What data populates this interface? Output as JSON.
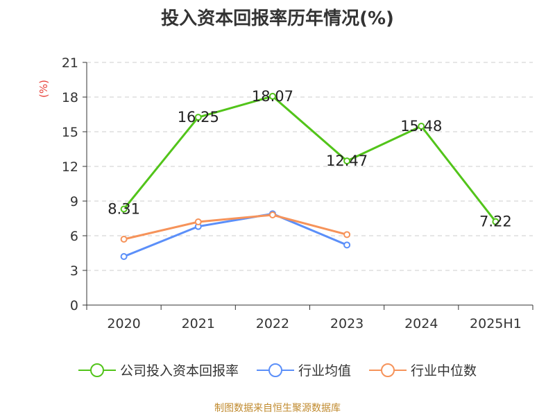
{
  "chart_data": {
    "type": "line",
    "title": "投入资本回报率历年情况(%)",
    "ylabel": "(%)",
    "categories": [
      "2020",
      "2021",
      "2022",
      "2023",
      "2024",
      "2025H1"
    ],
    "ylim": [
      0,
      21
    ],
    "yticks": [
      0,
      3,
      6,
      9,
      12,
      15,
      18,
      21
    ],
    "grid": true,
    "legend_position": "bottom",
    "series": [
      {
        "name": "公司投入资本回报率",
        "color": "#52c41a",
        "labeled": true,
        "values": [
          8.31,
          16.25,
          18.07,
          12.47,
          15.48,
          7.22
        ]
      },
      {
        "name": "行业均值",
        "color": "#5b8ff9",
        "labeled": false,
        "values": [
          4.2,
          6.8,
          7.9,
          5.2,
          null,
          null
        ]
      },
      {
        "name": "行业中位数",
        "color": "#f6935a",
        "labeled": false,
        "values": [
          5.7,
          7.2,
          7.8,
          6.1,
          null,
          null
        ]
      }
    ]
  },
  "source_note": "制图数据来自恒生聚源数据库"
}
